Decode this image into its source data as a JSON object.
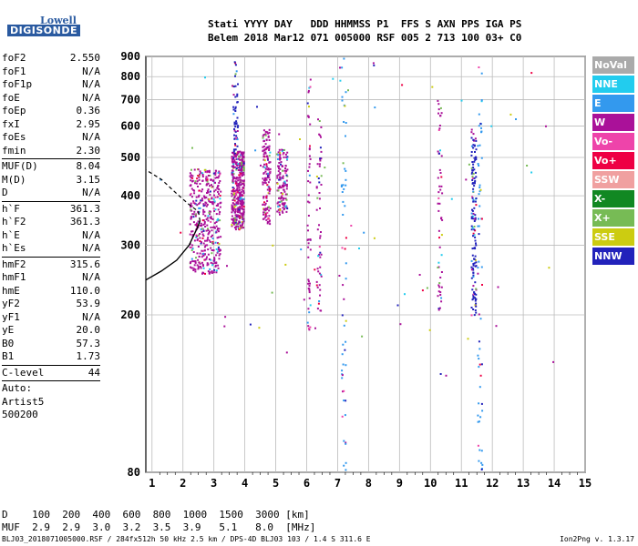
{
  "logo": {
    "line1": "Lowell",
    "line2": "DIGISONDE"
  },
  "header": {
    "row1": "Stati YYYY DAY   DDD HHMMSS P1  FFS S AXN PPS IGA PS",
    "row2": "Belem 2018 Mar12 071 005000 RSF 005 2 713 100 03+ C0"
  },
  "params": [
    {
      "k": "foF2",
      "v": "2.550"
    },
    {
      "k": "foF1",
      "v": "N/A"
    },
    {
      "k": "foF1p",
      "v": "N/A"
    },
    {
      "k": "foE",
      "v": "N/A"
    },
    {
      "k": "foEp",
      "v": "0.36"
    },
    {
      "k": "fxI",
      "v": "2.95"
    },
    {
      "k": "foEs",
      "v": "N/A"
    },
    {
      "k": "fmin",
      "v": "2.30"
    },
    {
      "sep": true
    },
    {
      "k": "MUF(D)",
      "v": "8.04"
    },
    {
      "k": "M(D)",
      "v": "3.15"
    },
    {
      "k": "D",
      "v": "N/A"
    },
    {
      "sep": true
    },
    {
      "k": "h`F",
      "v": "361.3"
    },
    {
      "k": "h`F2",
      "v": "361.3"
    },
    {
      "k": "h`E",
      "v": "N/A"
    },
    {
      "k": "h`Es",
      "v": "N/A"
    },
    {
      "sep": true
    },
    {
      "k": "hmF2",
      "v": "315.6"
    },
    {
      "k": "hmF1",
      "v": "N/A"
    },
    {
      "k": "hmE",
      "v": "110.0"
    },
    {
      "k": "yF2",
      "v": "53.9"
    },
    {
      "k": "yF1",
      "v": "N/A"
    },
    {
      "k": "yE",
      "v": "20.0"
    },
    {
      "k": "B0",
      "v": "57.3"
    },
    {
      "k": "B1",
      "v": "1.73"
    },
    {
      "sep": true
    },
    {
      "k": "C-level",
      "v": "44"
    },
    {
      "sep": true
    },
    {
      "t": "Auto:"
    },
    {
      "t": "Artist5"
    },
    {
      "t": "500200"
    }
  ],
  "legend": [
    {
      "label": "NoVal",
      "color": "#aaaaaa"
    },
    {
      "label": "NNE",
      "color": "#22ccee"
    },
    {
      "label": "E",
      "color": "#3399ee"
    },
    {
      "label": "W",
      "color": "#aa1199"
    },
    {
      "label": "Vo-",
      "color": "#ee44aa"
    },
    {
      "label": "Vo+",
      "color": "#ee0044"
    },
    {
      "label": "SSW",
      "color": "#f0a0a0"
    },
    {
      "label": "X-",
      "color": "#118822"
    },
    {
      "label": "X+",
      "color": "#77bb55"
    },
    {
      "label": "SSE",
      "color": "#cccc11"
    },
    {
      "label": "NNW",
      "color": "#2222bb"
    }
  ],
  "bottom": {
    "row1": "D    100  200  400  600  800  1000  1500  3000 [km]",
    "row2": "MUF  2.9  2.9  3.0  3.2  3.5  3.9   5.1   8.0  [MHz]"
  },
  "footer": {
    "left": "BLJ03_2018071005000.RSF / 284fx512h 50 kHz 2.5 km / DPS-4D BLJ03 103 / 1.4 S 311.6 E",
    "right": "Ion2Png v. 1.3.17"
  },
  "chart_data": {
    "type": "scatter",
    "title": "",
    "xlabel": "",
    "ylabel": "",
    "xlim": [
      0.8,
      15.0
    ],
    "ylim": [
      80,
      900
    ],
    "y_scale": "log",
    "grid": true,
    "x_ticks": [
      "1",
      "2",
      "3",
      "4",
      "5",
      "6",
      "7",
      "8",
      "9",
      "10",
      "11",
      "12",
      "13",
      "14",
      "15"
    ],
    "y_ticks": [
      "80",
      "200",
      "300",
      "400",
      "500",
      "600",
      "700",
      "800",
      "900"
    ],
    "traces": [
      {
        "f_min": 2.2,
        "f_max": 3.2,
        "h_min": 255,
        "h_max": 470,
        "mode": "W",
        "weight": "heavy"
      },
      {
        "f_min": 3.55,
        "f_max": 3.95,
        "h_min": 330,
        "h_max": 520,
        "mode": "W",
        "weight": "heavy"
      },
      {
        "f_min": 4.55,
        "f_max": 4.8,
        "h_min": 340,
        "h_max": 590,
        "mode": "W",
        "weight": "medium"
      },
      {
        "f_min": 5.0,
        "f_max": 5.35,
        "h_min": 360,
        "h_max": 530,
        "mode": "W",
        "weight": "medium"
      },
      {
        "f_min": 6.0,
        "f_max": 6.1,
        "h_min": 170,
        "h_max": 880,
        "mode": "W",
        "weight": "light"
      },
      {
        "f_min": 6.3,
        "f_max": 6.45,
        "h_min": 200,
        "h_max": 630,
        "mode": "W",
        "weight": "light"
      },
      {
        "f_min": 7.1,
        "f_max": 7.25,
        "h_min": 80,
        "h_max": 900,
        "mode": "E",
        "weight": "light"
      },
      {
        "f_min": 3.6,
        "f_max": 3.75,
        "h_min": 500,
        "h_max": 900,
        "mode": "NNW",
        "weight": "light"
      },
      {
        "f_min": 10.2,
        "f_max": 10.35,
        "h_min": 200,
        "h_max": 700,
        "mode": "W",
        "weight": "light"
      },
      {
        "f_min": 11.3,
        "f_max": 11.45,
        "h_min": 200,
        "h_max": 600,
        "mode": "NNW",
        "weight": "medium"
      },
      {
        "f_min": 11.5,
        "f_max": 11.65,
        "h_min": 80,
        "h_max": 900,
        "mode": "E",
        "weight": "light"
      }
    ],
    "profile": [
      {
        "f": 0.8,
        "h": 245
      },
      {
        "f": 1.3,
        "h": 258
      },
      {
        "f": 1.8,
        "h": 275
      },
      {
        "f": 2.2,
        "h": 300
      },
      {
        "f": 2.45,
        "h": 330
      },
      {
        "f": 2.55,
        "h": 345
      },
      {
        "f": 2.5,
        "h": 365
      },
      {
        "f": 2.2,
        "h": 380
      },
      {
        "f": 1.8,
        "h": 405
      },
      {
        "f": 1.3,
        "h": 440
      },
      {
        "f": 0.8,
        "h": 465
      }
    ]
  }
}
